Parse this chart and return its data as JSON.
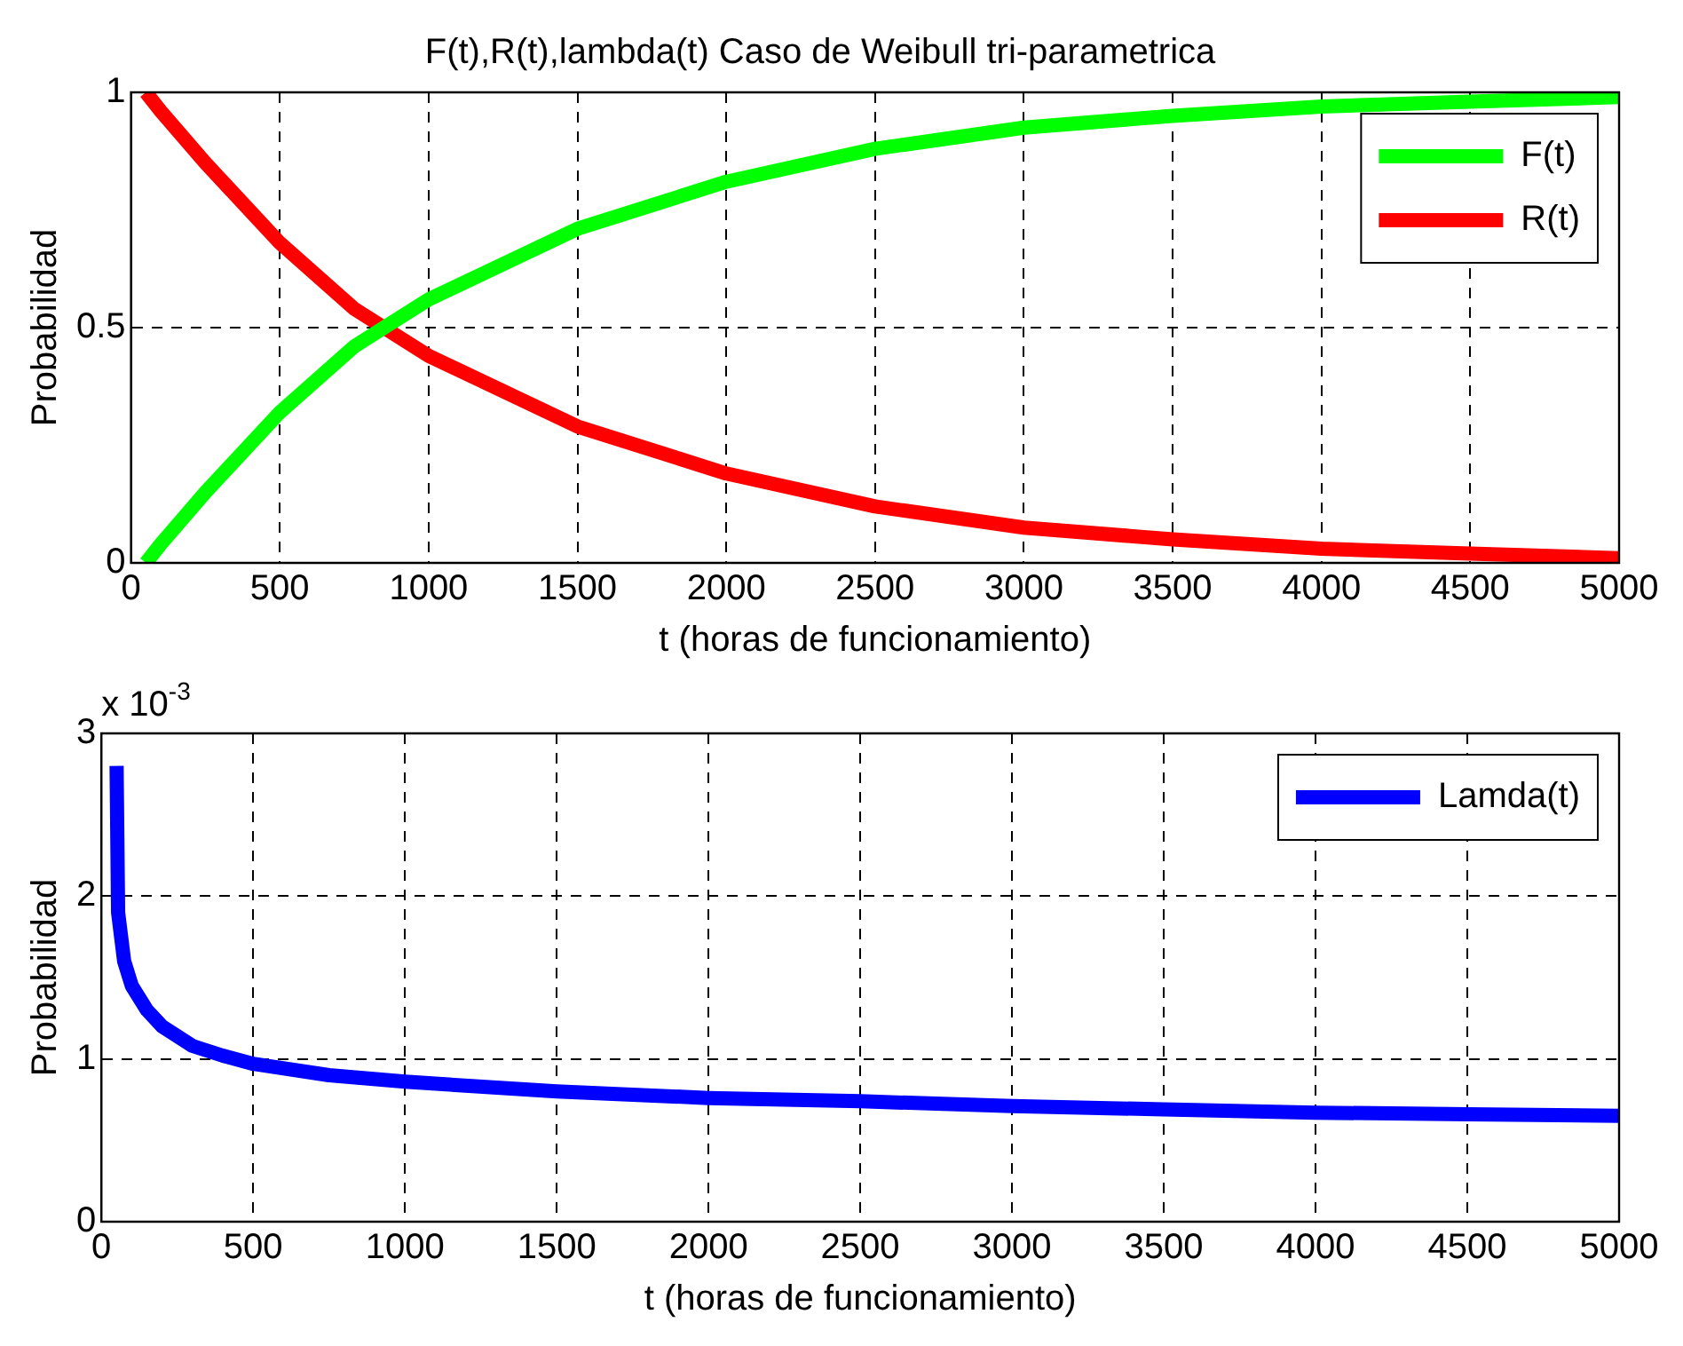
{
  "chart_data": [
    {
      "type": "line",
      "title": "F(t),R(t),lambda(t) Caso de Weibull tri-parametrica",
      "xlabel": "t (horas de funcionamiento)",
      "ylabel": "Probabilidad",
      "x": [
        50,
        100,
        250,
        500,
        750,
        850,
        1000,
        1500,
        2000,
        2500,
        3000,
        3500,
        4000,
        4500,
        5000
      ],
      "series": [
        {
          "name": "F(t)",
          "color": "#00ff00",
          "values": [
            0,
            0.04,
            0.15,
            0.32,
            0.46,
            0.5,
            0.56,
            0.71,
            0.81,
            0.88,
            0.925,
            0.95,
            0.97,
            0.98,
            0.99
          ]
        },
        {
          "name": "R(t)",
          "color": "#ff0000",
          "values": [
            1,
            0.96,
            0.85,
            0.68,
            0.54,
            0.5,
            0.44,
            0.29,
            0.19,
            0.12,
            0.075,
            0.05,
            0.03,
            0.02,
            0.01
          ]
        }
      ],
      "xlim": [
        0,
        5000
      ],
      "xticks": [
        0,
        500,
        1000,
        1500,
        2000,
        2500,
        3000,
        3500,
        4000,
        4500,
        5000
      ],
      "ylim": [
        0,
        1
      ],
      "yticks": [
        0,
        0.5,
        1
      ],
      "grid": true,
      "legend": "top right",
      "marker": "none",
      "line_style": "solid"
    },
    {
      "type": "line",
      "xlabel": "t (horas de funcionamiento)",
      "ylabel": "Probabilidad",
      "annotations": [
        "x 10$^{-3}$"
      ],
      "x": [
        50,
        55,
        75,
        100,
        150,
        200,
        300,
        400,
        500,
        750,
        1000,
        1500,
        2000,
        2500,
        3000,
        3500,
        4000,
        4500,
        5000
      ],
      "series": [
        {
          "name": "Lamda(t)",
          "color": "#0000ff",
          "values": [
            2.8,
            1.9,
            1.6,
            1.45,
            1.3,
            1.2,
            1.08,
            1.02,
            0.97,
            0.9,
            0.86,
            0.8,
            0.76,
            0.74,
            0.71,
            0.69,
            0.67,
            0.66,
            0.65
          ]
        }
      ],
      "xlim": [
        0,
        5000
      ],
      "xticks": [
        0,
        500,
        1000,
        1500,
        2000,
        2500,
        3000,
        3500,
        4000,
        4500,
        5000
      ],
      "ylim": [
        0,
        3
      ],
      "yticks": [
        0,
        1,
        2,
        3
      ],
      "grid": true,
      "legend": "top right",
      "marker": "none",
      "line_style": "solid"
    }
  ]
}
